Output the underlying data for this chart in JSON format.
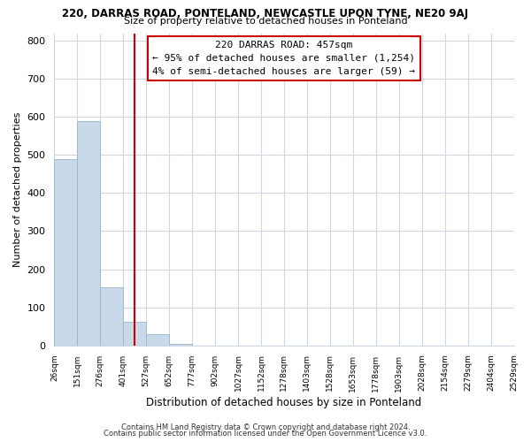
{
  "title": "220, DARRAS ROAD, PONTELAND, NEWCASTLE UPON TYNE, NE20 9AJ",
  "subtitle": "Size of property relative to detached houses in Ponteland",
  "xlabel": "Distribution of detached houses by size in Ponteland",
  "ylabel": "Number of detached properties",
  "bar_color": "#c8d9ea",
  "bar_edge_color": "#9ab4cb",
  "bar_values": [
    490,
    590,
    153,
    62,
    30,
    5,
    0,
    0,
    0,
    0,
    0,
    0,
    0,
    0,
    0,
    0,
    0,
    0,
    0,
    0
  ],
  "x_labels": [
    "26sqm",
    "151sqm",
    "276sqm",
    "401sqm",
    "527sqm",
    "652sqm",
    "777sqm",
    "902sqm",
    "1027sqm",
    "1152sqm",
    "1278sqm",
    "1403sqm",
    "1528sqm",
    "1653sqm",
    "1778sqm",
    "1903sqm",
    "2028sqm",
    "2154sqm",
    "2279sqm",
    "2404sqm",
    "2529sqm"
  ],
  "ylim": [
    0,
    820
  ],
  "yticks": [
    0,
    100,
    200,
    300,
    400,
    500,
    600,
    700,
    800
  ],
  "vline_color": "#cc0000",
  "vline_position": 3.0,
  "annotation_title": "220 DARRAS ROAD: 457sqm",
  "annotation_line1": "← 95% of detached houses are smaller (1,254)",
  "annotation_line2": "4% of semi-detached houses are larger (59) →",
  "annotation_box_color": "#ffffff",
  "annotation_box_edge": "#cc0000",
  "footer1": "Contains HM Land Registry data © Crown copyright and database right 2024.",
  "footer2": "Contains public sector information licensed under the Open Government Licence v3.0.",
  "background_color": "#ffffff",
  "grid_color": "#cdd8e3"
}
